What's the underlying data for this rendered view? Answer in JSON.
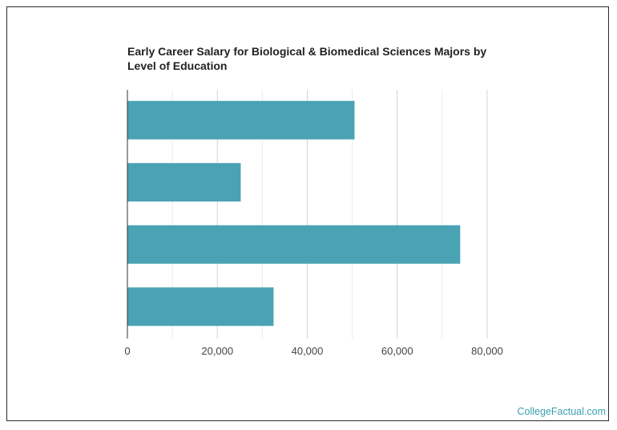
{
  "chart_data": {
    "type": "bar",
    "orientation": "horizontal",
    "title": "Early Career Salary for Biological & Biomedical Sciences Majors by Level of Education",
    "categories": [
      "",
      "",
      "",
      ""
    ],
    "values": [
      50500,
      25200,
      74000,
      32500
    ],
    "xlim": [
      0,
      80000
    ],
    "ticks": [
      0,
      20000,
      40000,
      60000,
      80000
    ],
    "tick_labels": [
      "0",
      "20,000",
      "40,000",
      "60,000",
      "80,000"
    ],
    "xlabel": "",
    "ylabel": "",
    "grid": true,
    "bar_color": "#4aa3b4"
  },
  "credit": "CollegeFactual.com",
  "colors": {
    "accent": "#3a9fb0",
    "grid": "#d9d9d9",
    "axis": "#333333"
  }
}
